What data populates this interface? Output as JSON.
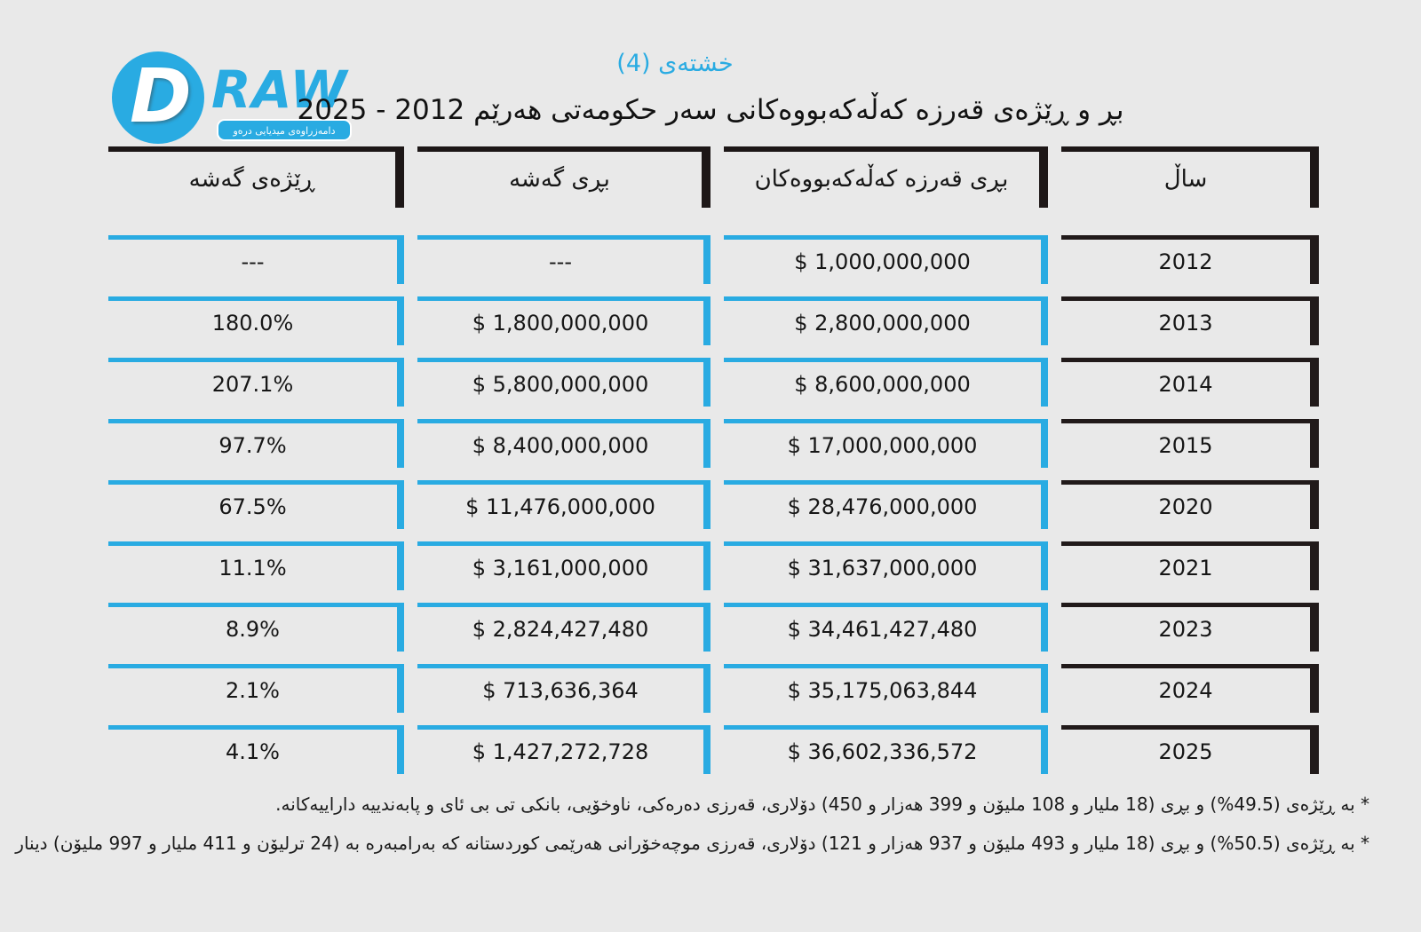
{
  "canvas": {
    "background": "#e9e9e9",
    "accent_blue": "#29abe2",
    "border_black": "#211a1a"
  },
  "logo": {
    "letter_d": "D",
    "letters_raw": "RAW",
    "tagline": "دامەزراوەی میدیایی درەو"
  },
  "header": {
    "table_label": "خشتەی (4)",
    "title": "بڕ و ڕێژەی قەرزە کەڵەکەبووەکانی سەر حکومەتی هەرێم 2012 - 2025"
  },
  "chart_data": {
    "type": "table",
    "title": "بڕ و ڕێژەی قەرزە کەڵەکەبووەکانی سەر حکومەتی هەرێم 2012 - 2025",
    "layout": "rtl, year column rightmost, blue L-borders on value cells, black L-borders on year cells",
    "columns": [
      {
        "key": "year",
        "label": "ساڵ"
      },
      {
        "key": "debt",
        "label": "بڕی قەرزە کەڵەکەبووەکان"
      },
      {
        "key": "growth",
        "label": "بڕی گەشە"
      },
      {
        "key": "rate",
        "label": "ڕێژەی گەشە"
      }
    ],
    "rows": [
      {
        "year": "2012",
        "debt": "$ 1,000,000,000",
        "growth": "---",
        "rate": "---"
      },
      {
        "year": "2013",
        "debt": "$ 2,800,000,000",
        "growth": "$ 1,800,000,000",
        "rate": "180.0%"
      },
      {
        "year": "2014",
        "debt": "$ 8,600,000,000",
        "growth": "$ 5,800,000,000",
        "rate": "207.1%"
      },
      {
        "year": "2015",
        "debt": "$ 17,000,000,000",
        "growth": "$ 8,400,000,000",
        "rate": "97.7%"
      },
      {
        "year": "2020",
        "debt": "$ 28,476,000,000",
        "growth": "$ 11,476,000,000",
        "rate": "67.5%"
      },
      {
        "year": "2021",
        "debt": "$ 31,637,000,000",
        "growth": "$ 3,161,000,000",
        "rate": "11.1%"
      },
      {
        "year": "2023",
        "debt": "$ 34,461,427,480",
        "growth": "$ 2,824,427,480",
        "rate": "8.9%"
      },
      {
        "year": "2024",
        "debt": "$ 35,175,063,844",
        "growth": "$ 713,636,364",
        "rate": "2.1%"
      },
      {
        "year": "2025",
        "debt": "$ 36,602,336,572",
        "growth": "$ 1,427,272,728",
        "rate": "4.1%"
      }
    ]
  },
  "footnotes": [
    "* بە ڕێژەی (49.5%) و بڕی (18 ملیار و 108 ملیۆن و 399 هەزار و 450) دۆلاری، قەرزی دەرەکی، ناوخۆیی، بانکی تی بی ئای و پابەندییە داراییەکانە.",
    "* بە ڕێژەی (50.5%) و بڕی (18 ملیار و 493 ملیۆن و 937 هەزار و 121) دۆلاری، قەرزی موچەخۆرانی هەرێمی کوردستانە کە بەرامبەرە بە (24 ترلیۆن و 411 ملیار و 997 ملیۆن) دینار"
  ]
}
